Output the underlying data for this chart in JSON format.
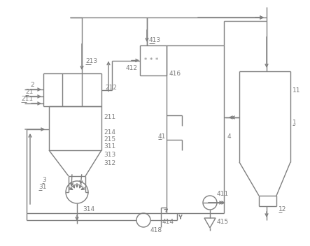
{
  "bg_color": "#ffffff",
  "line_color": "#7f7f7f",
  "lw": 1.0,
  "figsize": [
    4.43,
    3.52
  ],
  "dpi": 100
}
